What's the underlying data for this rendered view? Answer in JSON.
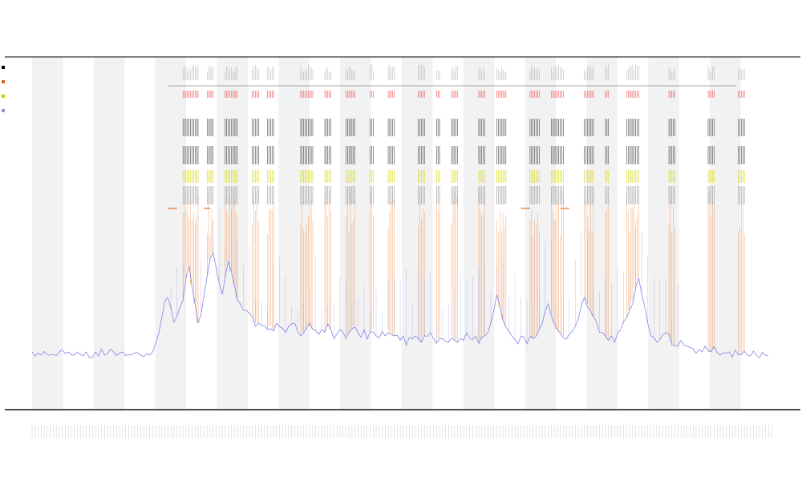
{
  "title_lines": [
    "",
    "",
    ""
  ],
  "chart_data": {
    "type": "line",
    "title": "",
    "xlabel": "",
    "ylabel": "",
    "legend": {
      "placement": "top-left",
      "entries": [
        {
          "name": "",
          "color": "#000000"
        },
        {
          "name": "",
          "color": "#e06020"
        },
        {
          "name": "",
          "color": "#cccc00"
        },
        {
          "name": "",
          "color": "#9090e0"
        }
      ]
    },
    "grid": false,
    "colors": {
      "density_line": "#7070e8",
      "peak_lines": "#f08030",
      "track_red": "#ee3333",
      "track_black": "#222222",
      "track_yellow": "#d8d800",
      "band_fill": "#f2f2f2",
      "axis": "#333333"
    },
    "x_range": [
      0,
      245
    ],
    "y_range": [
      0,
      100
    ],
    "band_count": 23,
    "series": [
      {
        "values": [
          13,
          12,
          13,
          12,
          13,
          12,
          12,
          13,
          12,
          13,
          13,
          12,
          13,
          12,
          12,
          13,
          12,
          12,
          13,
          12,
          12,
          13,
          12,
          13,
          12,
          12,
          13,
          13,
          12,
          12,
          13,
          12,
          13,
          12,
          12,
          13,
          12,
          12,
          13,
          12,
          14,
          16,
          19,
          24,
          28,
          30,
          26,
          22,
          24,
          27,
          30,
          36,
          40,
          34,
          28,
          22,
          25,
          31,
          37,
          42,
          44,
          39,
          35,
          31,
          36,
          41,
          38,
          34,
          30,
          28,
          27,
          26,
          25,
          24,
          22,
          22,
          21,
          22,
          20,
          21,
          20,
          22,
          21,
          20,
          19,
          20,
          21,
          22,
          20,
          19,
          19,
          20,
          21,
          20,
          19,
          18,
          20,
          19,
          21,
          20,
          18,
          19,
          20,
          19,
          18,
          19,
          20,
          21,
          19,
          18,
          19,
          17,
          19,
          20,
          18,
          17,
          19,
          18,
          20,
          19,
          18,
          19,
          17,
          18,
          16,
          18,
          17,
          18,
          17,
          16,
          18,
          17,
          19,
          18,
          16,
          17,
          18,
          17,
          16,
          18,
          17,
          16,
          18,
          17,
          19,
          18,
          17,
          18,
          16,
          17,
          18,
          19,
          22,
          26,
          30,
          27,
          23,
          21,
          19,
          18,
          17,
          16,
          18,
          17,
          16,
          18,
          17,
          18,
          20,
          22,
          25,
          28,
          25,
          22,
          20,
          19,
          18,
          17,
          18,
          19,
          21,
          24,
          27,
          30,
          28,
          26,
          24,
          22,
          20,
          19,
          18,
          17,
          18,
          17,
          19,
          20,
          22,
          24,
          26,
          29,
          33,
          36,
          31,
          27,
          22,
          19,
          17,
          16,
          17,
          18,
          19,
          18,
          16,
          15,
          14,
          16,
          15,
          14,
          15,
          14,
          13,
          14,
          13,
          14,
          13,
          13,
          14,
          13,
          12,
          13,
          12,
          13,
          12,
          13,
          12,
          12,
          13,
          12,
          12,
          13,
          12,
          12,
          13,
          12,
          12
        ]
      }
    ],
    "peak_marks": [
      [
        50,
        55
      ],
      [
        58,
        60
      ],
      [
        64,
        68
      ],
      [
        73,
        75
      ],
      [
        78,
        80
      ],
      [
        89,
        93
      ],
      [
        97,
        99
      ],
      [
        104,
        107
      ],
      [
        112,
        113
      ],
      [
        118,
        120
      ],
      [
        128,
        130
      ],
      [
        134,
        135
      ],
      [
        139,
        141
      ],
      [
        148,
        150
      ],
      [
        154,
        157
      ],
      [
        165,
        168
      ],
      [
        172,
        176
      ],
      [
        183,
        186
      ],
      [
        190,
        191
      ],
      [
        197,
        201
      ],
      [
        211,
        213
      ],
      [
        224,
        226
      ],
      [
        234,
        236
      ]
    ],
    "x_tick_labels": []
  }
}
